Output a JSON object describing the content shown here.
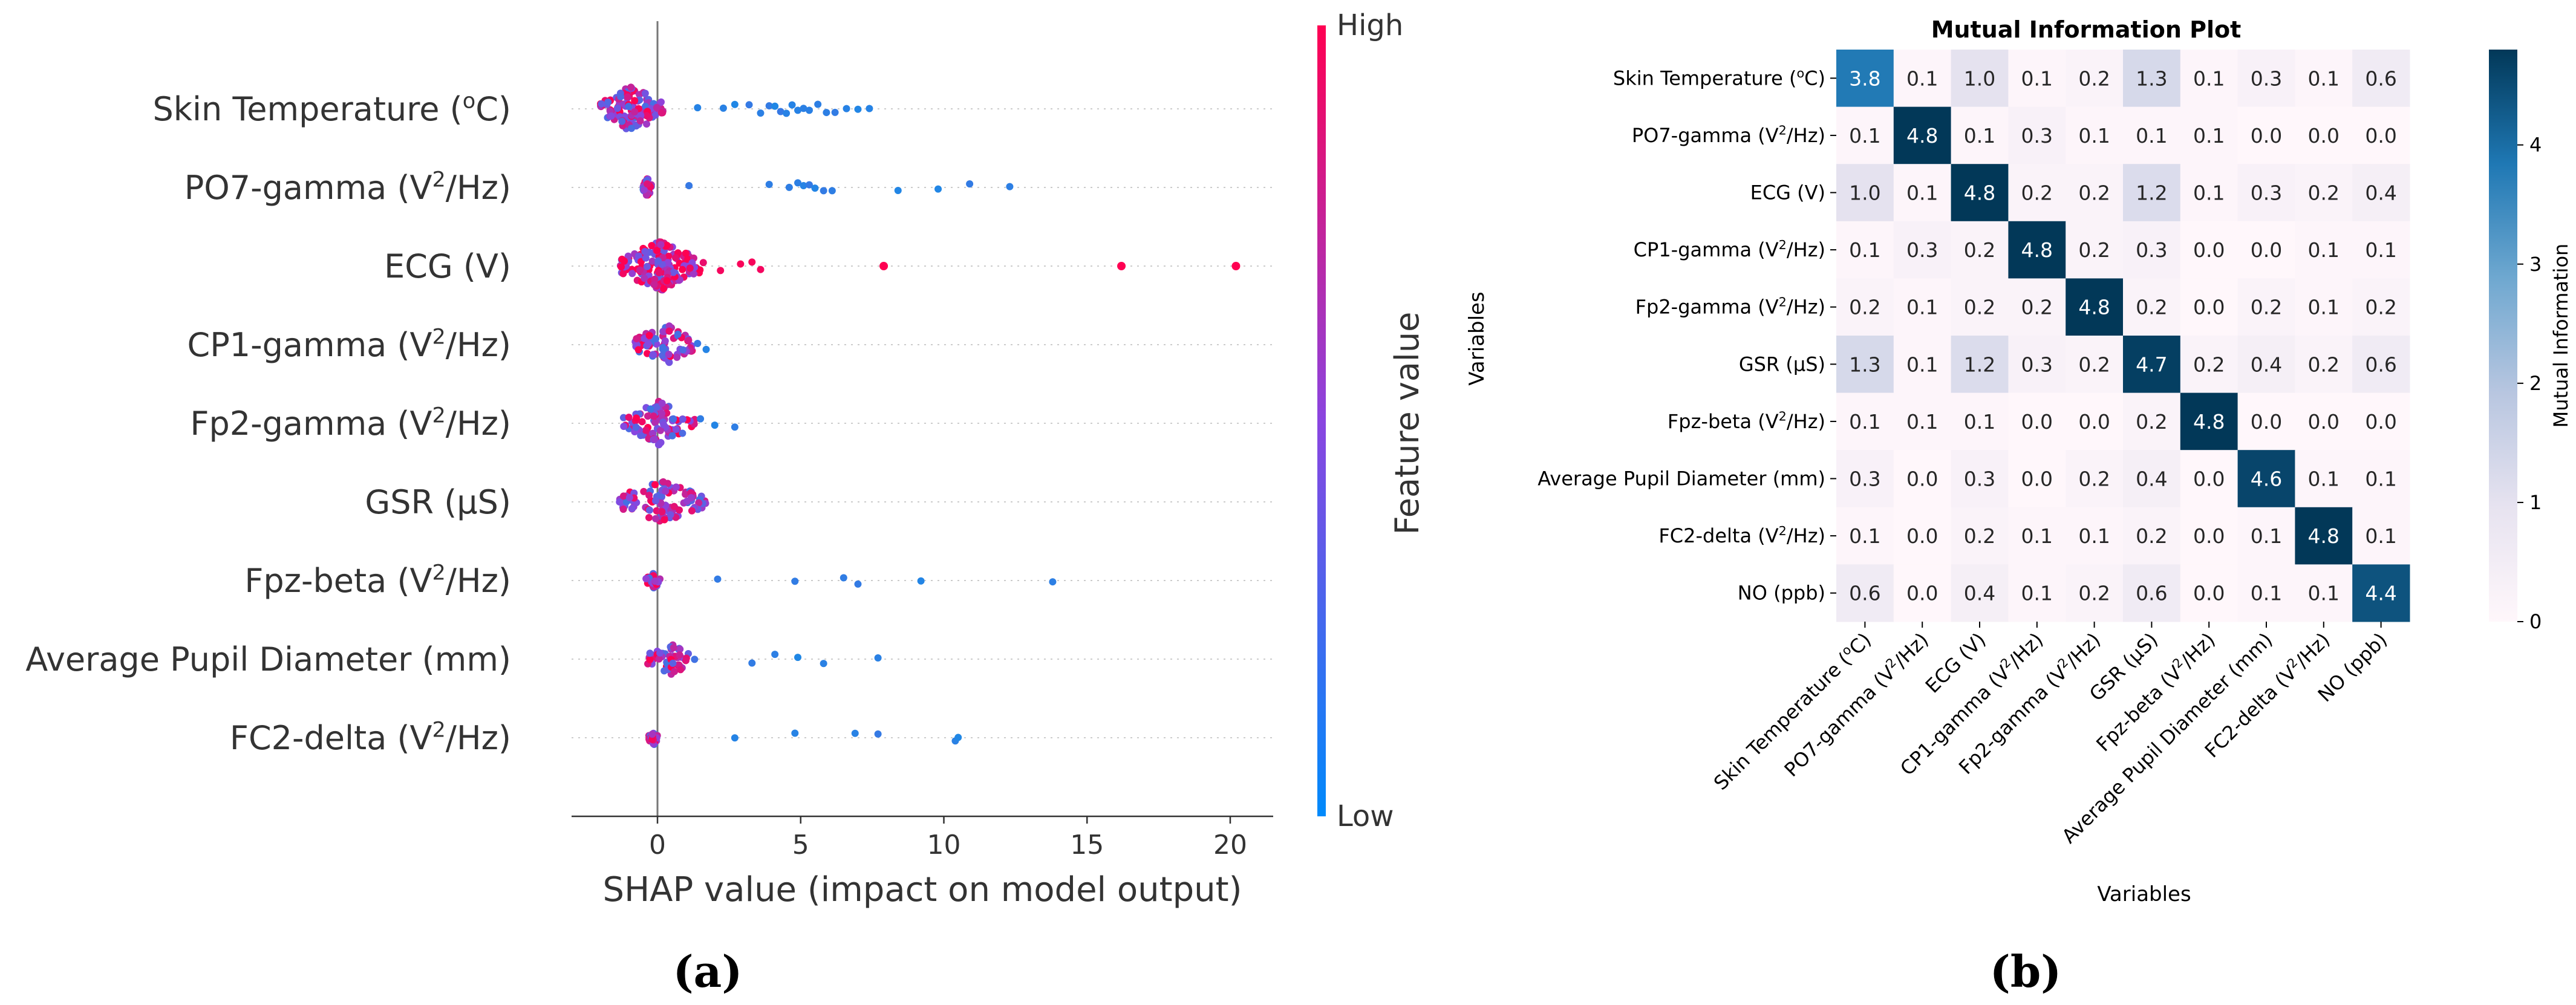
{
  "panel_a": {
    "caption": "(a)",
    "colorbar": {
      "high_label": "High",
      "low_label": "Low",
      "title": "Feature value"
    },
    "chart_data": {
      "type": "scatter",
      "subtype": "beeswarm",
      "xlabel": "SHAP value (impact on model output)",
      "xlim": [
        -3,
        21.5
      ],
      "xticks": [
        0,
        5,
        10,
        15,
        20
      ],
      "colors": {
        "low": "#1e88e5",
        "high": "#ff0052"
      },
      "features": [
        {
          "label": "Skin Temperature (°C)",
          "display": [
            "Skin Temperature (",
            "o",
            "C)"
          ],
          "core": [
            -2.0,
            0.2
          ],
          "coreN": 130,
          "spread": 0.3,
          "tail": [
            1.4,
            2.3,
            2.7,
            3.2,
            3.6,
            3.9,
            4.1,
            4.3,
            4.5,
            4.7,
            4.9,
            5.1,
            5.3,
            5.6,
            5.9,
            6.2,
            6.6,
            7.0,
            7.4
          ],
          "tailColors": "low",
          "outliers": [],
          "outlierColors": "low"
        },
        {
          "label": "PO7-gamma (V2/Hz)",
          "display": [
            "PO7-gamma (V",
            "2",
            "/Hz)"
          ],
          "core": [
            -0.5,
            -0.2
          ],
          "coreN": 30,
          "spread": 0.12,
          "tail": [
            1.1,
            3.9,
            4.6,
            4.9,
            5.1,
            5.3,
            5.5,
            5.8,
            6.1,
            8.4,
            9.8,
            10.9,
            12.3
          ],
          "tailColors": "low",
          "outliers": [],
          "outlierColors": "low"
        },
        {
          "label": "ECG (V)",
          "display": [
            "ECG (V)",
            "",
            ""
          ],
          "core": [
            -1.3,
            1.5
          ],
          "coreN": 170,
          "spread": 0.33,
          "tail": [
            1.6,
            2.2,
            2.9,
            3.3,
            3.6
          ],
          "tailColors": "high",
          "outliers": [
            7.9,
            16.2,
            20.2
          ],
          "outlierColors": "high"
        },
        {
          "label": "CP1-gamma (V2/Hz)",
          "display": [
            "CP1-gamma (V",
            "2",
            "/Hz)"
          ],
          "core": [
            -0.8,
            1.3
          ],
          "coreN": 80,
          "spread": 0.27,
          "tail": [
            1.4,
            1.7
          ],
          "tailColors": "low",
          "outliers": [],
          "outlierColors": "low"
        },
        {
          "label": "Fp2-gamma (V2/Hz)",
          "display": [
            "Fp2-gamma (V",
            "2",
            "/Hz)"
          ],
          "core": [
            -1.2,
            1.3
          ],
          "coreN": 90,
          "spread": 0.28,
          "tail": [
            1.5,
            2.0,
            2.7
          ],
          "tailColors": "low",
          "outliers": [],
          "outlierColors": "low"
        },
        {
          "label": "GSR (µS)",
          "display": [
            "GSR (µS)",
            "",
            ""
          ],
          "core": [
            -1.4,
            1.7
          ],
          "coreN": 100,
          "spread": 0.27,
          "tail": [],
          "tailColors": "low",
          "outliers": [],
          "outlierColors": "low"
        },
        {
          "label": "Fpz-beta (V2/Hz)",
          "display": [
            "Fpz-beta (V",
            "2",
            "/Hz)"
          ],
          "core": [
            -0.4,
            0.1
          ],
          "coreN": 30,
          "spread": 0.11,
          "tail": [
            2.1,
            4.8,
            6.5,
            7.0,
            9.2,
            13.8
          ],
          "tailColors": "low",
          "outliers": [],
          "outlierColors": "low"
        },
        {
          "label": "Average Pupil Diameter (mm)",
          "display": [
            "Average Pupil Diameter (mm)",
            "",
            ""
          ],
          "core": [
            -0.4,
            1.3
          ],
          "coreN": 50,
          "spread": 0.2,
          "tail": [
            3.3,
            4.1,
            4.9,
            5.8,
            7.7
          ],
          "tailColors": "low",
          "outliers": [],
          "outlierColors": "low"
        },
        {
          "label": "FC2-delta (V2/Hz)",
          "display": [
            "FC2-delta (V",
            "2",
            "/Hz)"
          ],
          "core": [
            -0.3,
            0.0
          ],
          "coreN": 30,
          "spread": 0.1,
          "tail": [
            2.7,
            4.8,
            6.9,
            7.7,
            10.4,
            10.5
          ],
          "tailColors": "low",
          "outliers": [],
          "outlierColors": "low"
        }
      ]
    }
  },
  "panel_b": {
    "caption": "(b)",
    "colorbar": {
      "title": "Mutual Information",
      "ticks": [
        "0",
        "1",
        "2",
        "3",
        "4"
      ]
    },
    "chart_data": {
      "type": "heatmap",
      "title": "Mutual Information Plot",
      "xlabel": "Variables",
      "ylabel": "Variables",
      "vmin": 0,
      "vmax": 4.8,
      "labels": [
        "Skin Temperature (°C)",
        "PO7-gamma (V2/Hz)",
        "ECG (V)",
        "CP1-gamma (V2/Hz)",
        "Fp2-gamma (V2/Hz)",
        "GSR (µS)",
        "Fpz-beta (V2/Hz)",
        "Average Pupil Diameter (mm)",
        "FC2-delta (V2/Hz)",
        "NO (ppb)"
      ],
      "label_parts": [
        [
          "Skin Temperature (",
          "o",
          "C)"
        ],
        [
          "PO7-gamma (V",
          "2",
          "/Hz)"
        ],
        [
          "ECG (V)",
          "",
          ""
        ],
        [
          "CP1-gamma (V",
          "2",
          "/Hz)"
        ],
        [
          "Fp2-gamma (V",
          "2",
          "/Hz)"
        ],
        [
          "GSR (µS)",
          "",
          ""
        ],
        [
          "Fpz-beta (V",
          "2",
          "/Hz)"
        ],
        [
          "Average Pupil Diameter (mm)",
          "",
          ""
        ],
        [
          "FC2-delta (V",
          "2",
          "/Hz)"
        ],
        [
          "NO (ppb)",
          "",
          ""
        ]
      ],
      "matrix": [
        [
          3.8,
          0.1,
          1.0,
          0.1,
          0.2,
          1.3,
          0.1,
          0.3,
          0.1,
          0.6
        ],
        [
          0.1,
          4.8,
          0.1,
          0.3,
          0.1,
          0.1,
          0.1,
          0.0,
          0.0,
          0.0
        ],
        [
          1.0,
          0.1,
          4.8,
          0.2,
          0.2,
          1.2,
          0.1,
          0.3,
          0.2,
          0.4
        ],
        [
          0.1,
          0.3,
          0.2,
          4.8,
          0.2,
          0.3,
          0.0,
          0.0,
          0.1,
          0.1
        ],
        [
          0.2,
          0.1,
          0.2,
          0.2,
          4.8,
          0.2,
          0.0,
          0.2,
          0.1,
          0.2
        ],
        [
          1.3,
          0.1,
          1.2,
          0.3,
          0.2,
          4.7,
          0.2,
          0.4,
          0.2,
          0.6
        ],
        [
          0.1,
          0.1,
          0.1,
          0.0,
          0.0,
          0.2,
          4.8,
          0.0,
          0.0,
          0.0
        ],
        [
          0.3,
          0.0,
          0.3,
          0.0,
          0.2,
          0.4,
          0.0,
          4.6,
          0.1,
          0.1
        ],
        [
          0.1,
          0.0,
          0.2,
          0.1,
          0.1,
          0.2,
          0.0,
          0.1,
          4.8,
          0.1
        ],
        [
          0.6,
          0.0,
          0.4,
          0.1,
          0.2,
          0.6,
          0.0,
          0.1,
          0.1,
          4.4
        ]
      ]
    }
  }
}
